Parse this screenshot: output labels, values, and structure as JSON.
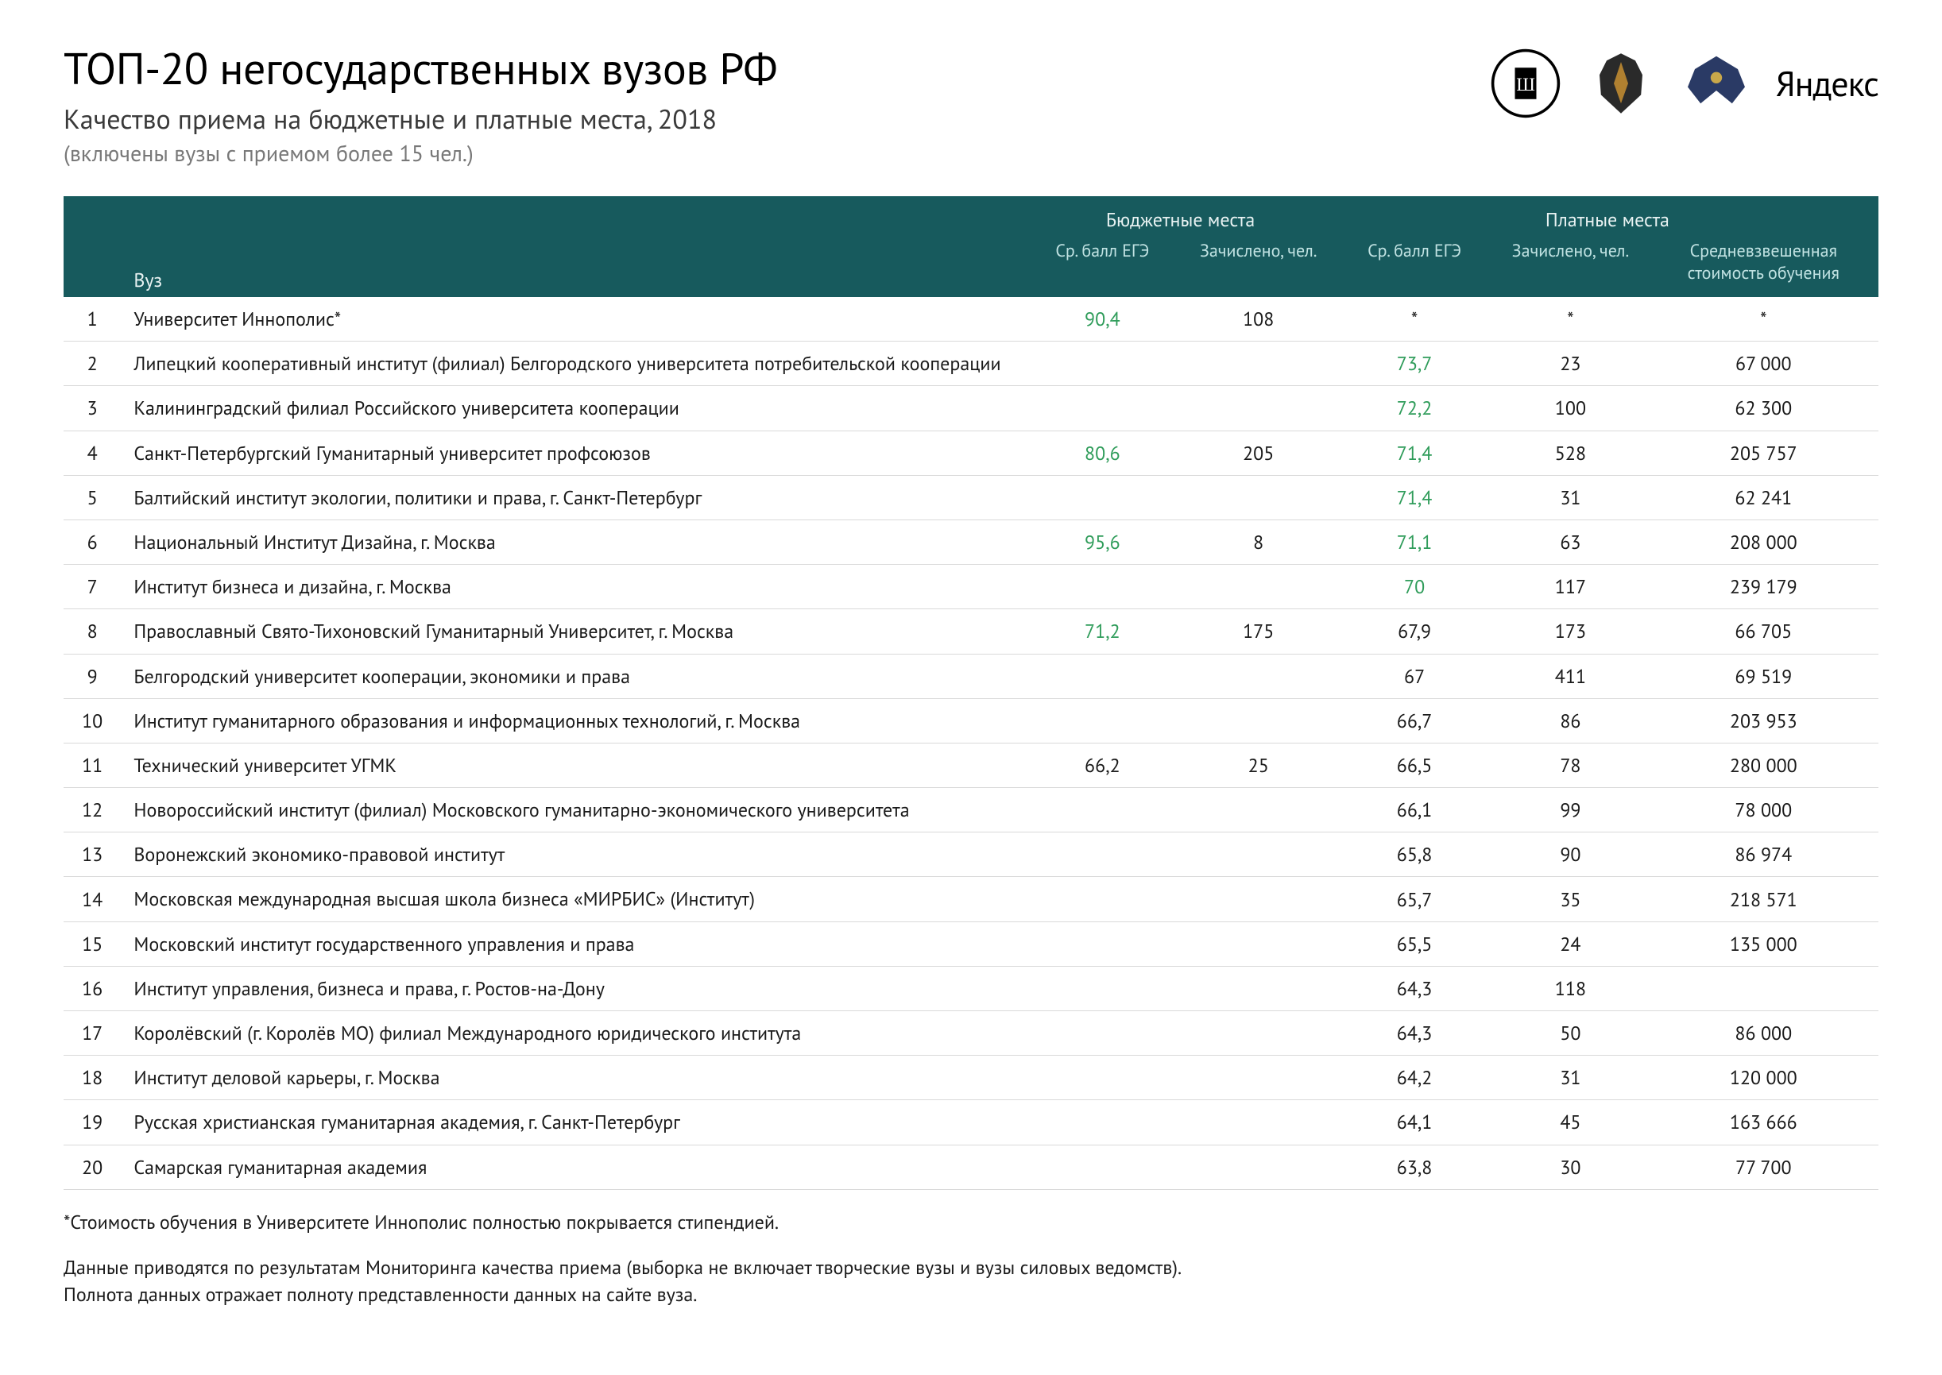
{
  "header": {
    "title": "ТОП-20 негосударственных вузов РФ",
    "subtitle": "Качество приема на бюджетные и платные места, 2018",
    "subnote": "(включены вузы с приемом более 15 чел.)",
    "yandex_label": "Яндекс"
  },
  "table": {
    "type": "table",
    "colors": {
      "header_bg": "#175a5d",
      "header_text": "#e8f2f2",
      "subheader_text": "#c0e2e2",
      "row_border": "#d9d9d9",
      "score_highlight": "#2f9c5a",
      "score_neutral": "#1a1a1a",
      "body_text": "#1a1a1a"
    },
    "green_threshold": 70,
    "columns": {
      "rank": "",
      "name": "Вуз",
      "group_budget": "Бюджетные места",
      "group_paid": "Платные места",
      "budget_score": "Ср. балл ЕГЭ",
      "budget_enrolled": "Зачислено, чел.",
      "paid_score": "Ср. балл ЕГЭ",
      "paid_enrolled": "Зачислено, чел.",
      "paid_cost": "Средневзвешенная стоимость обучения"
    },
    "rows": [
      {
        "rank": "1",
        "name": "Университет Иннополис*",
        "b_score": "90,4",
        "b_enr": "108",
        "p_score": "*",
        "p_enr": "*",
        "cost": "*"
      },
      {
        "rank": "2",
        "name": "Липецкий кооперативный институт (филиал) Белгородского университета потребительской кооперации",
        "b_score": "",
        "b_enr": "",
        "p_score": "73,7",
        "p_enr": "23",
        "cost": "67 000"
      },
      {
        "rank": "3",
        "name": "Калининградский филиал Российского университета кооперации",
        "b_score": "",
        "b_enr": "",
        "p_score": "72,2",
        "p_enr": "100",
        "cost": "62 300"
      },
      {
        "rank": "4",
        "name": "Санкт-Петербургский Гуманитарный университет профсоюзов",
        "b_score": "80,6",
        "b_enr": "205",
        "p_score": "71,4",
        "p_enr": "528",
        "cost": "205 757"
      },
      {
        "rank": "5",
        "name": "Балтийский институт экологии, политики и права, г. Санкт-Петербург",
        "b_score": "",
        "b_enr": "",
        "p_score": "71,4",
        "p_enr": "31",
        "cost": "62 241"
      },
      {
        "rank": "6",
        "name": "Национальный Институт Дизайна, г. Москва",
        "b_score": "95,6",
        "b_enr": "8",
        "p_score": "71,1",
        "p_enr": "63",
        "cost": "208 000"
      },
      {
        "rank": "7",
        "name": "Институт бизнеса и дизайна, г. Москва",
        "b_score": "",
        "b_enr": "",
        "p_score": "70",
        "p_enr": "117",
        "cost": "239 179"
      },
      {
        "rank": "8",
        "name": "Православный Свято-Тихоновский Гуманитарный Университет, г. Москва",
        "b_score": "71,2",
        "b_enr": "175",
        "p_score": "67,9",
        "p_enr": "173",
        "cost": "66 705"
      },
      {
        "rank": "9",
        "name": "Белгородский университет кооперации, экономики и права",
        "b_score": "",
        "b_enr": "",
        "p_score": "67",
        "p_enr": "411",
        "cost": "69 519"
      },
      {
        "rank": "10",
        "name": "Институт гуманитарного образования и информационных технологий, г. Москва",
        "b_score": "",
        "b_enr": "",
        "p_score": "66,7",
        "p_enr": "86",
        "cost": "203 953"
      },
      {
        "rank": "11",
        "name": "Технический университет УГМК",
        "b_score": "66,2",
        "b_enr": "25",
        "p_score": "66,5",
        "p_enr": "78",
        "cost": "280 000"
      },
      {
        "rank": "12",
        "name": "Новороссийский институт (филиал) Московского гуманитарно-экономического университета",
        "b_score": "",
        "b_enr": "",
        "p_score": "66,1",
        "p_enr": "99",
        "cost": "78 000"
      },
      {
        "rank": "13",
        "name": "Воронежский экономико-правовой институт",
        "b_score": "",
        "b_enr": "",
        "p_score": "65,8",
        "p_enr": "90",
        "cost": "86 974"
      },
      {
        "rank": "14",
        "name": "Московская международная высшая школа бизнеса «МИРБИС» (Институт)",
        "b_score": "",
        "b_enr": "",
        "p_score": "65,7",
        "p_enr": "35",
        "cost": "218 571"
      },
      {
        "rank": "15",
        "name": "Московский институт государственного управления и права",
        "b_score": "",
        "b_enr": "",
        "p_score": "65,5",
        "p_enr": "24",
        "cost": "135 000"
      },
      {
        "rank": "16",
        "name": "Институт управления, бизнеса и права, г. Ростов-на-Дону",
        "b_score": "",
        "b_enr": "",
        "p_score": "64,3",
        "p_enr": "118",
        "cost": ""
      },
      {
        "rank": "17",
        "name": "Королёвский (г. Королёв МО) филиал Международного юридического института",
        "b_score": "",
        "b_enr": "",
        "p_score": "64,3",
        "p_enr": "50",
        "cost": "86 000"
      },
      {
        "rank": "18",
        "name": "Институт деловой карьеры, г. Москва",
        "b_score": "",
        "b_enr": "",
        "p_score": "64,2",
        "p_enr": "31",
        "cost": "120 000"
      },
      {
        "rank": "19",
        "name": "Русская христианская гуманитарная академия, г. Санкт-Петербург",
        "b_score": "",
        "b_enr": "",
        "p_score": "64,1",
        "p_enr": "45",
        "cost": "163 666"
      },
      {
        "rank": "20",
        "name": "Самарская гуманитарная академия",
        "b_score": "",
        "b_enr": "",
        "p_score": "63,8",
        "p_enr": "30",
        "cost": "77 700"
      }
    ]
  },
  "footnotes": {
    "line1": "*Стоимость обучения в Университете Иннополис полностью покрывается стипендией.",
    "line2": "Данные приводятся по результатам Мониторинга качества приема (выборка не включает творческие вузы и вузы силовых ведомств).",
    "line3": "Полнота данных отражает полноту представленности данных на сайте вуза."
  }
}
